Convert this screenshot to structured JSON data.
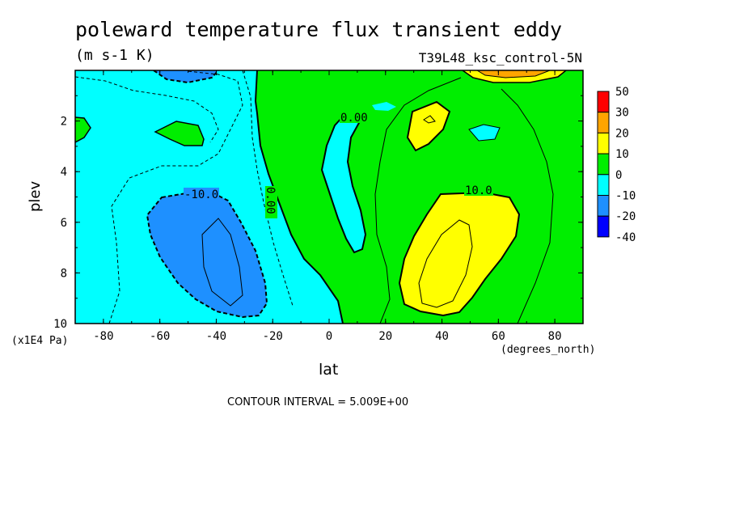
{
  "chart_data": {
    "type": "heatmap",
    "title": "poleward temperature flux transient eddy",
    "units": "(m s-1 K)",
    "run_label": "T39L48_ksc_control-5N",
    "xlabel": "lat",
    "xunits": "(degrees_north)",
    "ylabel": "plev",
    "ymultiplier": "(x1E4 Pa)",
    "xlim": [
      -90,
      90
    ],
    "ylim": [
      10,
      0
    ],
    "x_ticks": [
      "-80",
      "-60",
      "-40",
      "-20",
      "0",
      "20",
      "40",
      "60",
      "80"
    ],
    "x_tick_values": [
      -80,
      -60,
      -40,
      -20,
      0,
      20,
      40,
      60,
      80
    ],
    "y_ticks": [
      "2",
      "4",
      "6",
      "8",
      "10"
    ],
    "y_tick_values": [
      2,
      4,
      6,
      8,
      10
    ],
    "contour_interval": "CONTOUR INTERVAL = 5.009E+00",
    "contour_labels": [
      "-10.0",
      "0.00",
      "0.00",
      "10.0"
    ],
    "colorbar": {
      "labels": [
        "50",
        "30",
        "20",
        "10",
        "0",
        "-10",
        "-20",
        "-40"
      ],
      "colors": [
        "#ff0000",
        "#ffa500",
        "#ffff00",
        "#00ee00",
        "#00ffff",
        "#1e90ff",
        "#0000ff"
      ]
    },
    "regions": [
      {
        "name": "negative-southern-midlatitudes",
        "level": "-20 to -10",
        "lat_range": [
          -65,
          -22
        ],
        "plev_range": [
          4.8,
          9.6
        ]
      },
      {
        "name": "positive-northern-midlatitudes",
        "level": "10 to 20",
        "lat_range": [
          25,
          65
        ],
        "plev_range": [
          4.7,
          9.9
        ]
      },
      {
        "name": "positive-upper-north",
        "level": "10 to 20",
        "lat_range": [
          26,
          40
        ],
        "plev_range": [
          1.2,
          3.3
        ]
      },
      {
        "name": "negative-tropics-tongue",
        "level": "-10 to 0",
        "lat_range": [
          -2,
          15
        ],
        "plev_range": [
          0.7,
          7.2
        ]
      }
    ]
  },
  "colors": {
    "cyan": "#00ffff",
    "green": "#00ee00",
    "yellow": "#ffff00",
    "blue": "#1e90ff",
    "orange": "#ffa500",
    "red": "#ff0000",
    "darkblue": "#0000ff"
  }
}
